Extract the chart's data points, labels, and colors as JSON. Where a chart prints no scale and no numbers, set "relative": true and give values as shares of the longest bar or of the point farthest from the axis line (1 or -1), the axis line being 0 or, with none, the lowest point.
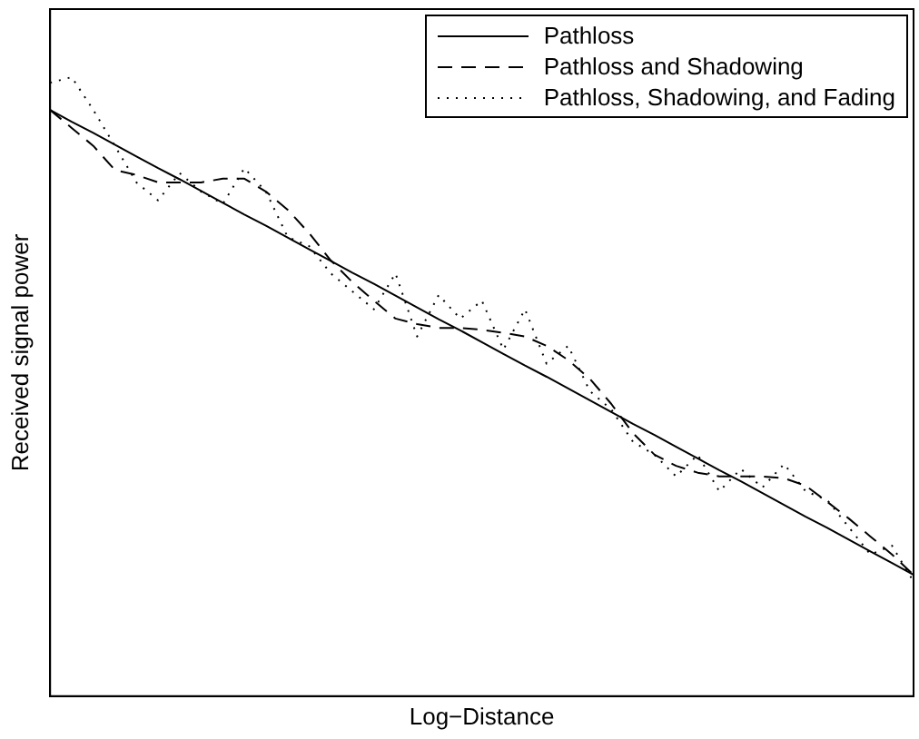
{
  "chart_data": {
    "type": "line",
    "relative": true,
    "xlabel": "Log−Distance",
    "ylabel": "Received signal power",
    "grid": false,
    "legend": "top right",
    "marker": "none",
    "categories": [
      null,
      null,
      null,
      null,
      null,
      null,
      null,
      null,
      null,
      null,
      null,
      null,
      null,
      null,
      null,
      null,
      null,
      null,
      null,
      null,
      null,
      null,
      null,
      null,
      null,
      null,
      null,
      null,
      null,
      null,
      null,
      null,
      null,
      null,
      null,
      null,
      null,
      null,
      null,
      null,
      null
    ],
    "series": [
      {
        "name": "Pathloss",
        "color": "#000000",
        "line_style": "solid",
        "values": [
          0.947,
          0.928,
          0.91,
          0.891,
          0.872,
          0.853,
          0.835,
          0.816,
          0.797,
          0.778,
          0.76,
          0.741,
          0.722,
          0.703,
          0.684,
          0.666,
          0.647,
          0.628,
          0.609,
          0.591,
          0.572,
          0.553,
          0.534,
          0.516,
          0.497,
          0.478,
          0.459,
          0.44,
          0.422,
          0.403,
          0.384,
          0.365,
          0.347,
          0.328,
          0.309,
          0.29,
          0.272,
          0.253,
          0.234,
          0.215,
          0.196
        ]
      },
      {
        "name": "Pathloss and Shadowing",
        "color": "#000000",
        "line_style": "dashed",
        "values": [
          0.947,
          0.918,
          0.889,
          0.85,
          0.842,
          0.83,
          0.83,
          0.83,
          0.836,
          0.836,
          0.815,
          0.786,
          0.748,
          0.704,
          0.669,
          0.639,
          0.61,
          0.601,
          0.595,
          0.595,
          0.592,
          0.587,
          0.581,
          0.566,
          0.543,
          0.513,
          0.472,
          0.425,
          0.39,
          0.372,
          0.361,
          0.355,
          0.355,
          0.355,
          0.352,
          0.34,
          0.314,
          0.287,
          0.258,
          0.229,
          0.196
        ]
      },
      {
        "name": "Pathloss, Shadowing, and Fading",
        "color": "#000000",
        "line_style": "dotted",
        "values": [
          0.991,
          1,
          0.947,
          0.889,
          0.83,
          0.801,
          0.845,
          0.815,
          0.795,
          0.853,
          0.815,
          0.742,
          0.727,
          0.683,
          0.654,
          0.625,
          0.683,
          0.581,
          0.648,
          0.61,
          0.639,
          0.56,
          0.625,
          0.537,
          0.566,
          0.493,
          0.463,
          0.411,
          0.39,
          0.355,
          0.39,
          0.331,
          0.367,
          0.337,
          0.375,
          0.331,
          0.317,
          0.273,
          0.229,
          0.243,
          0.185
        ]
      }
    ]
  }
}
